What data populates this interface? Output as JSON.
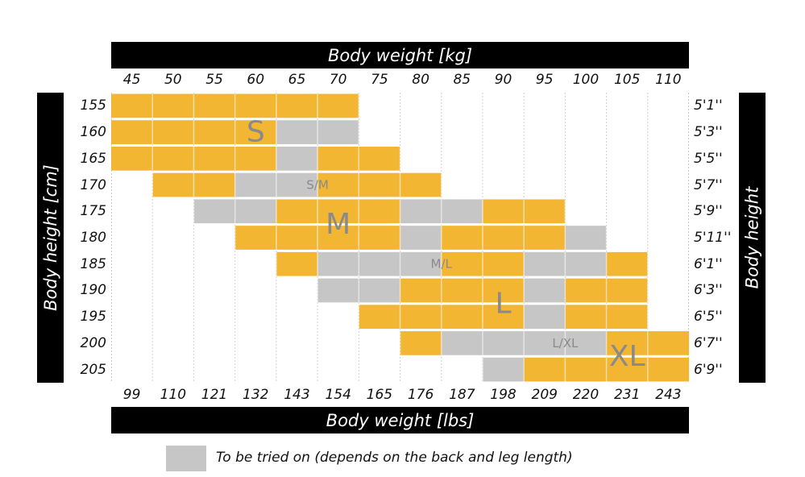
{
  "header": {
    "weight_kg_title": "Body weight [kg]",
    "weight_lbs_title": "Body weight [lbs]",
    "height_cm_title": "Body height [cm]",
    "height_ft_title": "Body height"
  },
  "legend": {
    "label": "To be tried on (depends on the back and leg length)"
  },
  "colors": {
    "fit": "#f2b632",
    "try_on": "#c6c6c6",
    "label_text": "#8a8a8a",
    "bars": "#000000"
  },
  "chart_data": {
    "type": "heatmap",
    "x_kg": [
      "45",
      "50",
      "55",
      "60",
      "65",
      "70",
      "75",
      "80",
      "85",
      "90",
      "95",
      "100",
      "105",
      "110"
    ],
    "x_lbs": [
      "99",
      "110",
      "121",
      "132",
      "143",
      "154",
      "165",
      "176",
      "187",
      "198",
      "209",
      "220",
      "231",
      "243"
    ],
    "y_cm": [
      "155",
      "160",
      "165",
      "170",
      "175",
      "180",
      "185",
      "190",
      "195",
      "200",
      "205"
    ],
    "y_ft": [
      "5'1''",
      "5'3''",
      "5'5''",
      "5'7''",
      "5'9''",
      "5'11''",
      "6'1''",
      "6'3''",
      "6'5''",
      "6'7''",
      "6'9''"
    ],
    "legend_cell_codes": {
      "Y": "fit",
      "G": "to be tried on",
      ".": "empty"
    },
    "rows": [
      "YYYYYY........",
      "YYYYGG........",
      "YYYYGYY.......",
      ".YYGGYYY......",
      "..GGYYYGGYY...",
      "...YYYYGYYYG..",
      "....YGGGYYGGY.",
      ".....GGYYYGYY.",
      "......YYYYGYY.",
      ".......YGGGGYY",
      ".........GYYYY"
    ],
    "size_labels": [
      {
        "text": "S",
        "cm": "160",
        "kg": "60"
      },
      {
        "text": "S/M",
        "cm": "170",
        "kg": "67.5"
      },
      {
        "text": "M",
        "cm": "177.5",
        "kg": "70"
      },
      {
        "text": "M/L",
        "cm": "185",
        "kg": "82.5"
      },
      {
        "text": "L",
        "cm": "192.5",
        "kg": "90"
      },
      {
        "text": "L/XL",
        "cm": "200",
        "kg": "97.5"
      },
      {
        "text": "XL",
        "cm": "202.5",
        "kg": "105"
      }
    ]
  }
}
